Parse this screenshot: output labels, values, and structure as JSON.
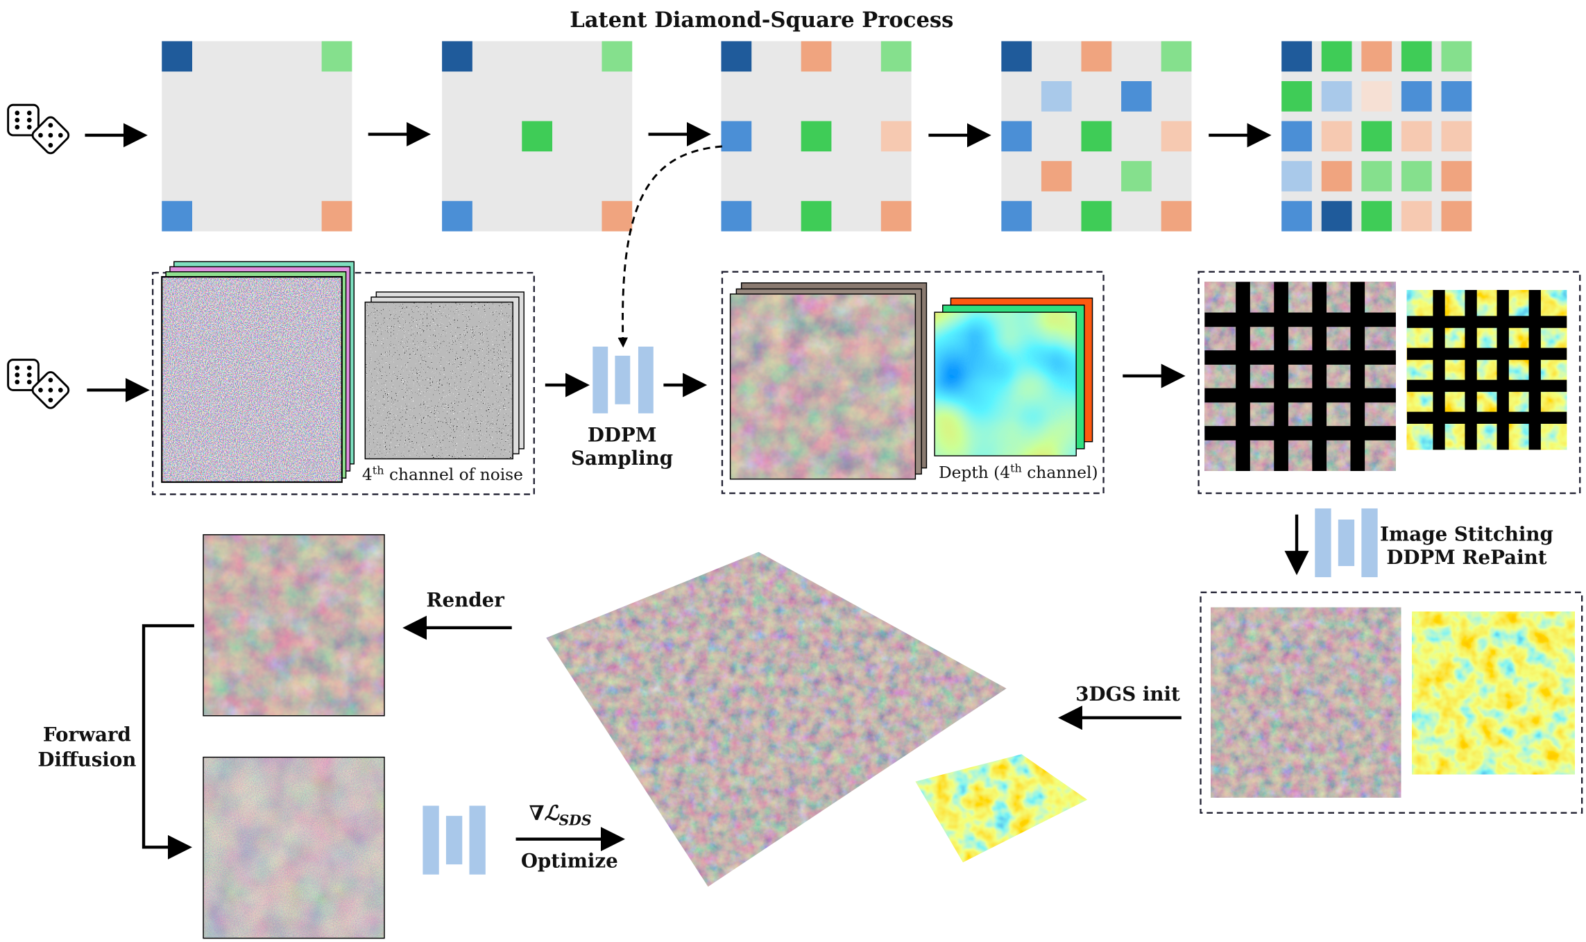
{
  "title": "Latent Diamond-Square Process",
  "noise_label": {
    "prefix": "4",
    "sup": "th",
    "suffix": " channel of noise"
  },
  "sampling_label": [
    "DDPM",
    "Sampling"
  ],
  "depth_label": {
    "prefix": "Depth (4",
    "sup": "th",
    "suffix": " channel)"
  },
  "stitching_label": [
    "Image Stitching",
    "DDPM RePaint"
  ],
  "render_label": "Render",
  "init_label": "3DGS init",
  "forward_label": [
    "Forward",
    "Diffusion"
  ],
  "loss_label": {
    "nabla": "∇",
    "script": "ℒ",
    "sub": "SDS"
  },
  "optimize_label": "Optimize"
}
